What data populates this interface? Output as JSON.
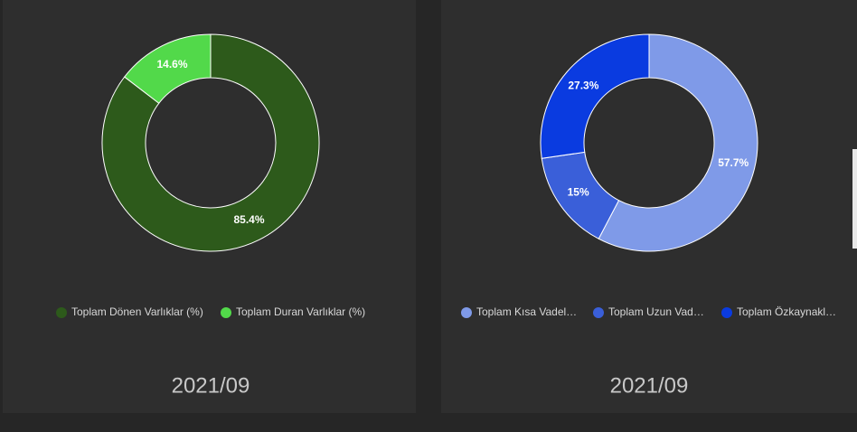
{
  "chart_data": [
    {
      "type": "pie",
      "categories": [
        "Toplam Dönen Varlıklar (%)",
        "Toplam Duran Varlıklar (%)"
      ],
      "values": [
        85.4,
        14.6
      ],
      "value_labels": [
        "85.4%",
        "14.6%"
      ],
      "colors": [
        "#2d5a1b",
        "#52d94a"
      ],
      "caption": "2021/09"
    },
    {
      "type": "pie",
      "categories": [
        "Toplam Kısa Vadel…",
        "Toplam Uzun Vad…",
        "Toplam Özkaynakl…"
      ],
      "values": [
        57.7,
        15,
        27.3
      ],
      "value_labels": [
        "57.7%",
        "15%",
        "27.3%"
      ],
      "colors": [
        "#7f9ae8",
        "#3a5fd9",
        "#0a3be0"
      ],
      "caption": "2021/09"
    }
  ]
}
